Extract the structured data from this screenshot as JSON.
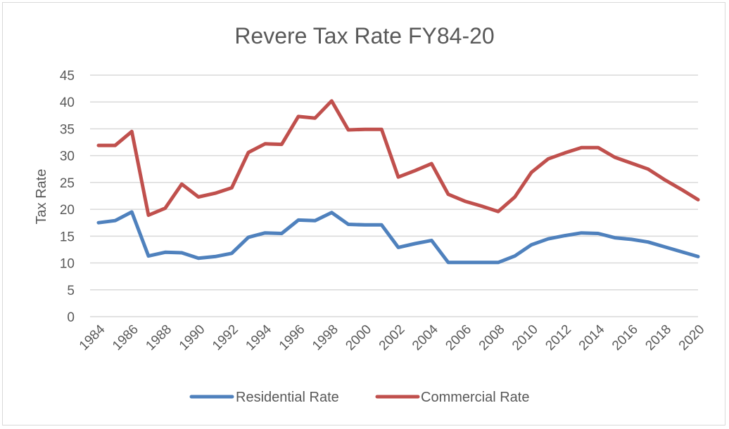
{
  "chart_data": {
    "type": "line",
    "title": "Revere Tax Rate FY84-20",
    "xlabel": "",
    "ylabel": "Tax Rate",
    "ylim": [
      0,
      45
    ],
    "yticks": [
      0,
      5,
      10,
      15,
      20,
      25,
      30,
      35,
      40,
      45
    ],
    "x": [
      1984,
      1985,
      1986,
      1987,
      1988,
      1989,
      1990,
      1991,
      1992,
      1993,
      1994,
      1995,
      1996,
      1997,
      1998,
      1999,
      2000,
      2001,
      2002,
      2003,
      2004,
      2005,
      2006,
      2007,
      2008,
      2009,
      2010,
      2011,
      2012,
      2013,
      2014,
      2015,
      2016,
      2017,
      2018,
      2019,
      2020
    ],
    "xtick_labels": [
      "1984",
      "1986",
      "1988",
      "1990",
      "1992",
      "1994",
      "1996",
      "1998",
      "2000",
      "2002",
      "2004",
      "2006",
      "2008",
      "2010",
      "2012",
      "2014",
      "2016",
      "2018",
      "2020"
    ],
    "grid": true,
    "legend_position": "bottom",
    "series": [
      {
        "name": "Residential Rate",
        "color": "#4f81bd",
        "values": [
          17.5,
          17.9,
          19.5,
          11.3,
          12.0,
          11.9,
          10.9,
          11.2,
          11.8,
          14.8,
          15.6,
          15.5,
          18.0,
          17.9,
          19.4,
          17.2,
          17.1,
          17.1,
          12.9,
          13.6,
          14.2,
          10.1,
          10.1,
          10.1,
          10.1,
          11.3,
          13.4,
          14.5,
          15.1,
          15.6,
          15.5,
          14.7,
          14.4,
          13.9,
          13.0,
          12.1,
          11.2
        ]
      },
      {
        "name": "Commercial Rate",
        "color": "#c0504d",
        "values": [
          31.9,
          31.9,
          34.5,
          18.9,
          20.2,
          24.7,
          22.3,
          23.0,
          24.0,
          30.6,
          32.2,
          32.1,
          37.3,
          37.0,
          40.2,
          34.8,
          34.9,
          34.9,
          26.0,
          27.2,
          28.5,
          22.8,
          21.5,
          20.6,
          19.6,
          22.3,
          26.9,
          29.4,
          30.5,
          31.5,
          31.5,
          29.7,
          28.6,
          27.5,
          25.5,
          23.7,
          21.8
        ]
      }
    ]
  }
}
